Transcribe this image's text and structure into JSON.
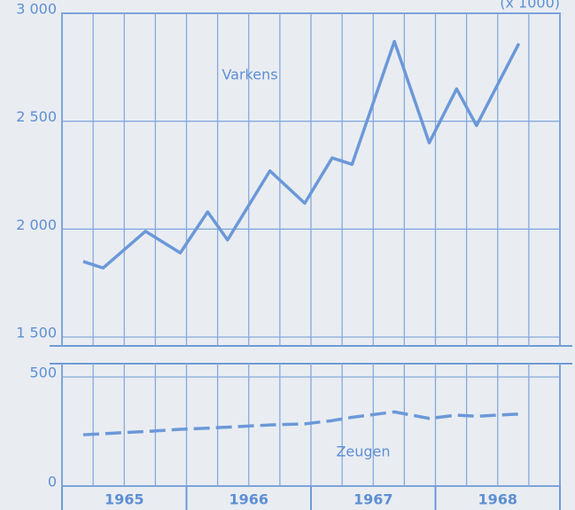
{
  "chart_data": [
    {
      "type": "line",
      "unit_note": "(x 1000)",
      "x": [
        1965.17,
        1965.33,
        1965.67,
        1965.95,
        1966.17,
        1966.33,
        1966.67,
        1966.95,
        1967.17,
        1967.33,
        1967.67,
        1967.95,
        1968.17,
        1968.33,
        1968.67
      ],
      "xlim": [
        1965,
        1969
      ],
      "xgrid": [
        1965,
        1965.25,
        1965.5,
        1965.75,
        1966,
        1966.25,
        1966.5,
        1966.75,
        1967,
        1967.25,
        1967.5,
        1967.75,
        1968,
        1968.25,
        1968.5,
        1968.75,
        1969
      ],
      "ylim": [
        1500,
        3000
      ],
      "yticks": [
        {
          "value": 1500,
          "label": "1 500"
        },
        {
          "value": 2000,
          "label": "2 000"
        },
        {
          "value": 2500,
          "label": "2 500"
        },
        {
          "value": 3000,
          "label": "3 000"
        }
      ],
      "grid": true,
      "series": [
        {
          "name": "Varkens",
          "color": "#6b98d8",
          "dash": false,
          "values": [
            1850,
            1820,
            1990,
            1890,
            2080,
            1950,
            2270,
            2120,
            2330,
            2300,
            2870,
            2400,
            2650,
            2480,
            2860
          ]
        }
      ]
    },
    {
      "type": "line",
      "x": [
        1965.17,
        1965.33,
        1965.67,
        1965.95,
        1966.17,
        1966.33,
        1966.67,
        1966.95,
        1967.17,
        1967.33,
        1967.67,
        1967.95,
        1968.17,
        1968.33,
        1968.67
      ],
      "xlim": [
        1965,
        1969
      ],
      "xgrid": [
        1965,
        1965.25,
        1965.5,
        1965.75,
        1966,
        1966.25,
        1966.5,
        1966.75,
        1967,
        1967.25,
        1967.5,
        1967.75,
        1968,
        1968.25,
        1968.5,
        1968.75,
        1969
      ],
      "xticks": [
        {
          "value": 1965.5,
          "label": "1965"
        },
        {
          "value": 1966.5,
          "label": "1966"
        },
        {
          "value": 1967.5,
          "label": "1967"
        },
        {
          "value": 1968.5,
          "label": "1968"
        }
      ],
      "ylim": [
        0,
        500
      ],
      "yticks": [
        0,
        500
      ],
      "grid": true,
      "series": [
        {
          "name": "Zeugen",
          "color": "#6b98d8",
          "dash": true,
          "values": [
            235,
            240,
            250,
            260,
            265,
            270,
            280,
            285,
            300,
            315,
            340,
            310,
            325,
            320,
            330
          ]
        }
      ]
    }
  ]
}
